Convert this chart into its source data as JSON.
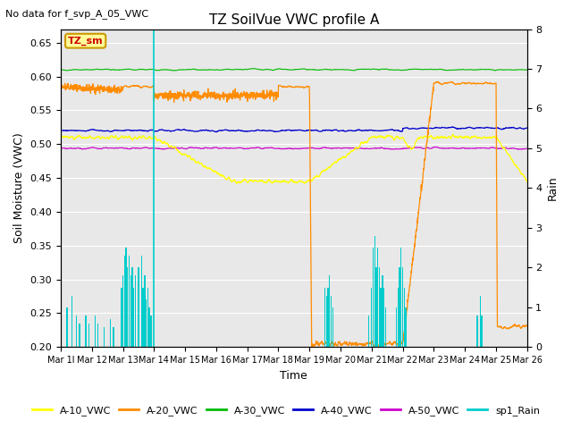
{
  "title": "TZ SoilVue VWC profile A",
  "no_data_text": "No data for f_svp_A_05_VWC",
  "xlabel": "Time",
  "ylabel_left": "Soil Moisture (VWC)",
  "ylabel_right": "Rain",
  "ylim_left": [
    0.2,
    0.67
  ],
  "ylim_right": [
    0.0,
    8.0
  ],
  "yticks_left": [
    0.2,
    0.25,
    0.3,
    0.35,
    0.4,
    0.45,
    0.5,
    0.55,
    0.6,
    0.65
  ],
  "yticks_right": [
    0.0,
    1.0,
    2.0,
    3.0,
    4.0,
    5.0,
    6.0,
    7.0,
    8.0
  ],
  "xtick_labels": [
    "Mar 1l",
    "Mar 12",
    "Mar 13",
    "Mar 14",
    "Mar 15",
    "Mar 16",
    "Mar 17",
    "Mar 18",
    "Mar 19",
    "Mar 20",
    "Mar 21",
    "Mar 22",
    "Mar 23",
    "Mar 24",
    "Mar 25",
    "Mar 26"
  ],
  "colors": {
    "A10": "#ffff00",
    "A20": "#ff8c00",
    "A30": "#00bb00",
    "A40": "#0000cc",
    "A50": "#cc00cc",
    "Rain": "#00cccc",
    "bg_inner": "#e8e8e8",
    "tzsm_box": "#ffff99",
    "tzsm_border": "#cc9900",
    "tzsm_text": "#cc0000"
  },
  "legend_entries": [
    "A-10_VWC",
    "A-20_VWC",
    "A-30_VWC",
    "A-40_VWC",
    "A-50_VWC",
    "sp1_Rain"
  ],
  "seed": 42,
  "figsize": [
    6.4,
    4.8
  ],
  "dpi": 100
}
